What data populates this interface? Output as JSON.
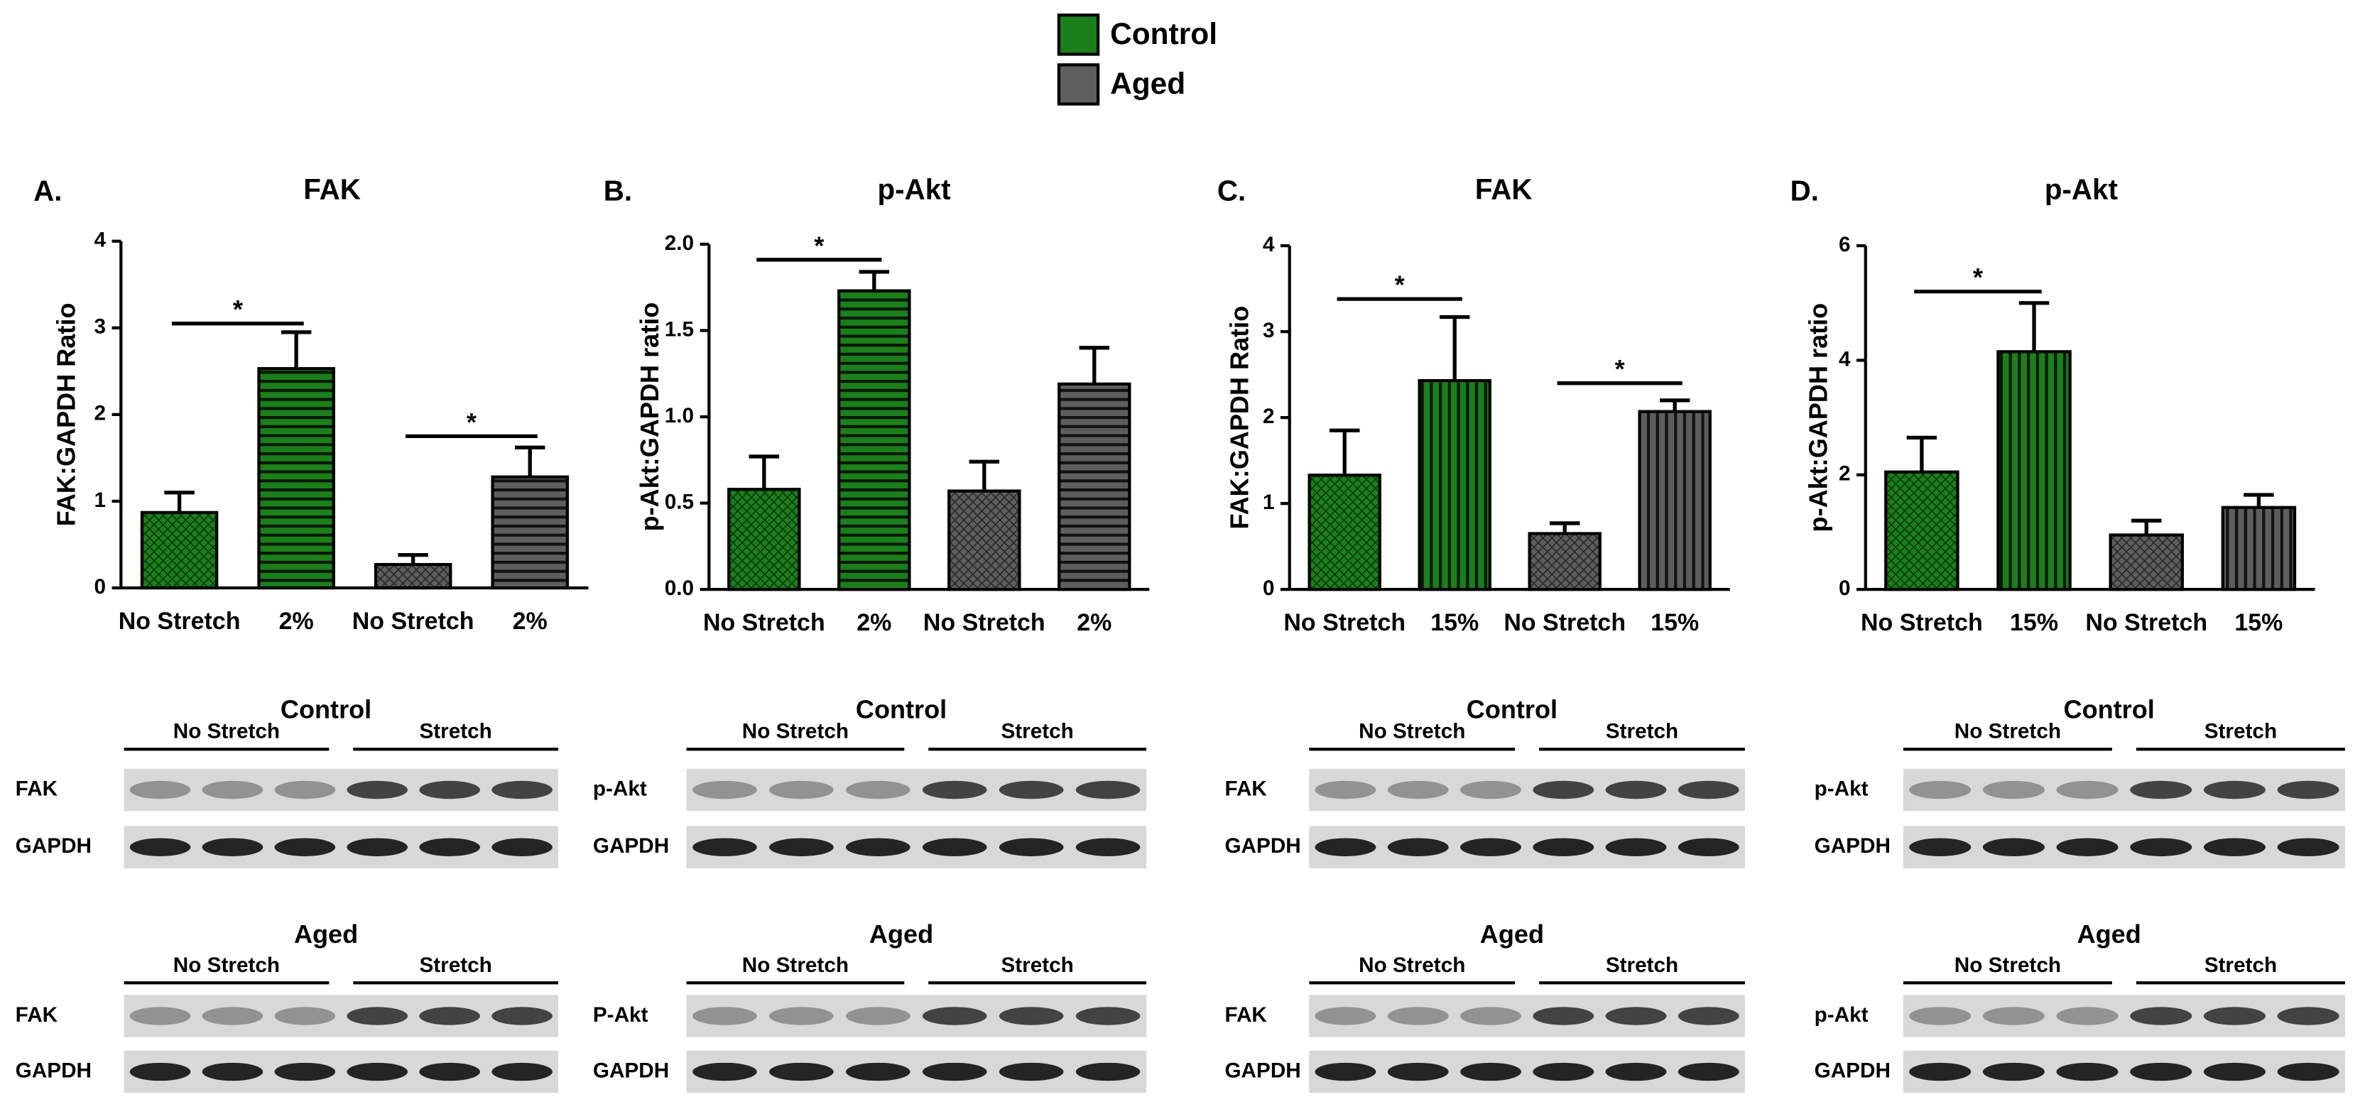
{
  "legend": [
    {
      "name": "Control",
      "color": "#1b7f1b"
    },
    {
      "name": "Aged",
      "color": "#5e5e5e"
    }
  ],
  "chart_data": [
    {
      "type": "bar",
      "panel": "A.",
      "title": "FAK",
      "y_label": "FAK:GAPDH Ratio",
      "categories": [
        "No Stretch",
        "2%",
        "No Stretch",
        "2%"
      ],
      "values": [
        0.87,
        2.53,
        0.27,
        1.28
      ],
      "errors": [
        0.23,
        0.42,
        0.11,
        0.34
      ],
      "colors": [
        "#1b7f1b",
        "#1b7f1b",
        "#5e5e5e",
        "#5e5e5e"
      ],
      "patterns": [
        "dots",
        "hlines",
        "dots",
        "hlines"
      ],
      "ylim": [
        0,
        4
      ],
      "yticks": [
        0,
        1,
        2,
        3,
        4
      ],
      "annotations": [
        {
          "text": "*",
          "x": [
            0,
            1
          ],
          "y": 3.05
        },
        {
          "text": "*",
          "x": [
            2,
            3
          ],
          "y": 1.75
        }
      ]
    },
    {
      "type": "bar",
      "panel": "B.",
      "title": "p-Akt",
      "y_label": "p-Akt:GAPDH ratio",
      "categories": [
        "No Stretch",
        "2%",
        "No Stretch",
        "2%"
      ],
      "values": [
        0.58,
        1.73,
        0.57,
        1.19
      ],
      "errors": [
        0.19,
        0.11,
        0.17,
        0.21
      ],
      "colors": [
        "#1b7f1b",
        "#1b7f1b",
        "#5e5e5e",
        "#5e5e5e"
      ],
      "patterns": [
        "dots",
        "hlines",
        "dots",
        "hlines"
      ],
      "ylim": [
        0,
        2
      ],
      "yticks": [
        {
          "value": 0,
          "label": "0.0"
        },
        0.5,
        {
          "value": 1,
          "label": "1.0"
        },
        1.5,
        {
          "value": 2,
          "label": "2.0"
        }
      ],
      "annotations": [
        {
          "text": "*",
          "x": [
            0,
            1
          ],
          "y": 1.91
        }
      ]
    },
    {
      "type": "bar",
      "panel": "C.",
      "title": "FAK",
      "y_label": "FAK:GAPDH Ratio",
      "categories": [
        "No Stretch",
        "15%",
        "No Stretch",
        "15%"
      ],
      "values": [
        1.33,
        2.43,
        0.65,
        2.07
      ],
      "errors": [
        0.52,
        0.74,
        0.12,
        0.13
      ],
      "colors": [
        "#1b7f1b",
        "#1b7f1b",
        "#5e5e5e",
        "#5e5e5e"
      ],
      "patterns": [
        "dots",
        "vlines",
        "dots",
        "vlines"
      ],
      "ylim": [
        0,
        4
      ],
      "yticks": [
        0,
        1,
        2,
        3,
        4
      ],
      "annotations": [
        {
          "text": "*",
          "x": [
            0,
            1
          ],
          "y": 3.38
        },
        {
          "text": "*",
          "x": [
            2,
            3
          ],
          "y": 2.4
        }
      ]
    },
    {
      "type": "bar",
      "panel": "D.",
      "title": "p-Akt",
      "y_label": "p-Akt:GAPDH ratio",
      "categories": [
        "No Stretch",
        "15%",
        "No Stretch",
        "15%"
      ],
      "values": [
        2.05,
        4.15,
        0.95,
        1.43
      ],
      "errors": [
        0.6,
        0.85,
        0.25,
        0.22
      ],
      "colors": [
        "#1b7f1b",
        "#1b7f1b",
        "#5e5e5e",
        "#5e5e5e"
      ],
      "patterns": [
        "dots",
        "vlines",
        "dots",
        "vlines"
      ],
      "ylim": [
        0,
        6
      ],
      "yticks": [
        0,
        2,
        4,
        6
      ],
      "annotations": [
        {
          "text": "*",
          "x": [
            0,
            1
          ],
          "y": 5.2
        }
      ]
    }
  ],
  "blots": [
    [
      {
        "group": "Control",
        "conditions": [
          "No Stretch",
          "Stretch"
        ],
        "rows": [
          "FAK",
          "GAPDH"
        ]
      },
      {
        "group": "Aged",
        "conditions": [
          "No Stretch",
          "Stretch"
        ],
        "rows": [
          "FAK",
          "GAPDH"
        ]
      }
    ],
    [
      {
        "group": "Control",
        "conditions": [
          "No Stretch",
          "Stretch"
        ],
        "rows": [
          "p-Akt",
          "GAPDH"
        ]
      },
      {
        "group": "Aged",
        "conditions": [
          "No Stretch",
          "Stretch"
        ],
        "rows": [
          "P-Akt",
          "GAPDH"
        ]
      }
    ],
    [
      {
        "group": "Control",
        "conditions": [
          "No Stretch",
          "Stretch"
        ],
        "rows": [
          "FAK",
          "GAPDH"
        ]
      },
      {
        "group": "Aged",
        "conditions": [
          "No Stretch",
          "Stretch"
        ],
        "rows": [
          "FAK",
          "GAPDH"
        ]
      }
    ],
    [
      {
        "group": "Control",
        "conditions": [
          "No Stretch",
          "Stretch"
        ],
        "rows": [
          "p-Akt",
          "GAPDH"
        ]
      },
      {
        "group": "Aged",
        "conditions": [
          "No Stretch",
          "Stretch"
        ],
        "rows": [
          "p-Akt",
          "GAPDH"
        ]
      }
    ]
  ]
}
